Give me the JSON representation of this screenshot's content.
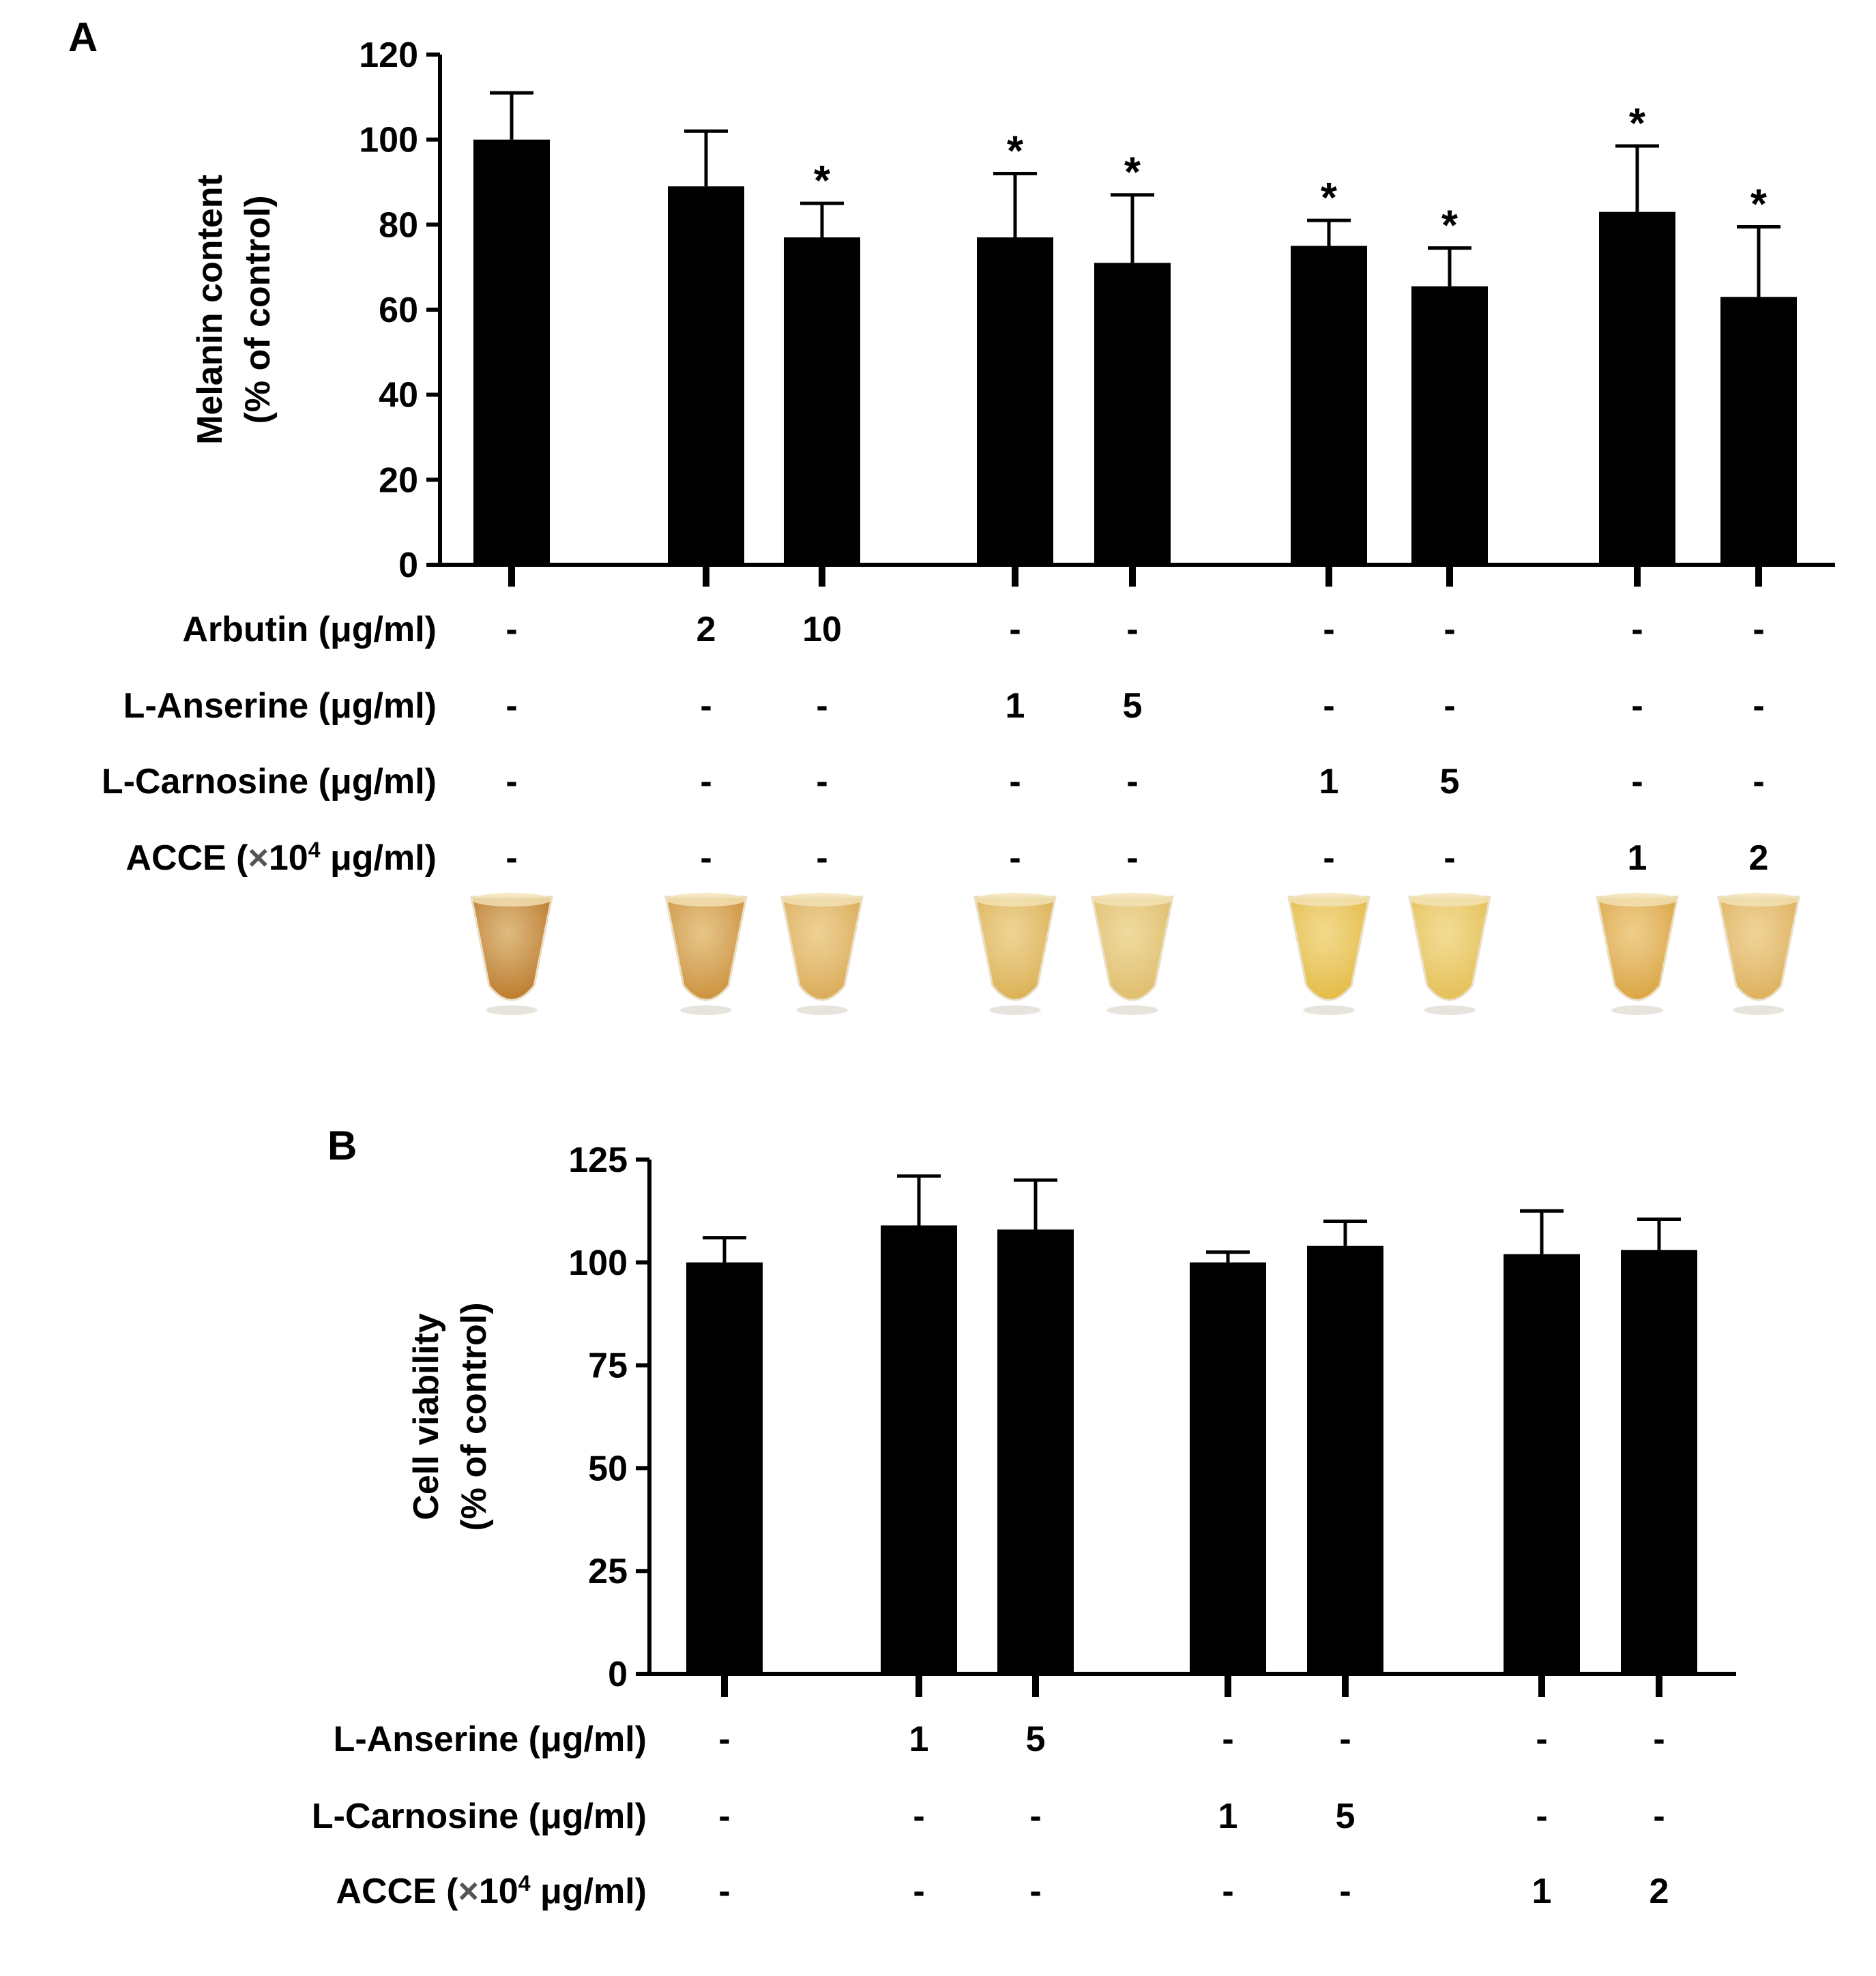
{
  "chart_data": [
    {
      "type": "bar",
      "panel_label": "A",
      "ylabel_lines": [
        "Melanin content",
        "(% of control)"
      ],
      "xlabel": "",
      "ylim": [
        0,
        120
      ],
      "yticks": [
        0,
        20,
        40,
        60,
        80,
        100,
        120
      ],
      "groups": [
        [
          0
        ],
        [
          1,
          2
        ],
        [
          3,
          4
        ],
        [
          5,
          6
        ],
        [
          7,
          8
        ]
      ],
      "series": [
        {
          "name": "Melanin content",
          "values": [
            100,
            89,
            77,
            77,
            71,
            75,
            65.5,
            83,
            63
          ],
          "errors": [
            11,
            13,
            8,
            15,
            16,
            6,
            9,
            15.5,
            16.5
          ],
          "significance": [
            "",
            "",
            "*",
            "*",
            "*",
            "*",
            "*",
            "*",
            "*"
          ]
        }
      ],
      "treatment_rows": [
        {
          "label": "Arbutin (μg/ml)",
          "values": [
            "-",
            "2",
            "10",
            "-",
            "-",
            "-",
            "-",
            "-",
            "-"
          ]
        },
        {
          "label": "L-Anserine (μg/ml)",
          "values": [
            "-",
            "-",
            "-",
            "1",
            "5",
            "-",
            "-",
            "-",
            "-"
          ]
        },
        {
          "label": "L-Carnosine (μg/ml)",
          "values": [
            "-",
            "-",
            "-",
            "-",
            "-",
            "1",
            "5",
            "-",
            "-"
          ]
        },
        {
          "label_prefix": "ACCE (",
          "label_times": "×",
          "label_base": "10",
          "label_exp": "4",
          "label_suffix": " μg/ml)",
          "values": [
            "-",
            "-",
            "-",
            "-",
            "-",
            "-",
            "-",
            "1",
            "2"
          ]
        }
      ],
      "tube_colors": [
        "#b8721c",
        "#c98a2e",
        "#d9a54a",
        "#d9ab48",
        "#ddb85f",
        "#e2b637",
        "#e3bb49",
        "#d99e35",
        "#dcaa50"
      ]
    },
    {
      "type": "bar",
      "panel_label": "B",
      "ylabel_lines": [
        "Cell viability",
        "(% of control)"
      ],
      "xlabel": "",
      "ylim": [
        0,
        125
      ],
      "yticks": [
        0,
        25,
        50,
        75,
        100,
        125
      ],
      "groups": [
        [
          0
        ],
        [
          1,
          2
        ],
        [
          3,
          4
        ],
        [
          5,
          6
        ]
      ],
      "series": [
        {
          "name": "Cell viability",
          "values": [
            100,
            109,
            108,
            100,
            104,
            102,
            103
          ],
          "errors": [
            6,
            12,
            12,
            2.5,
            6,
            10.5,
            7.5
          ],
          "significance": [
            "",
            "",
            "",
            "",
            "",
            "",
            ""
          ]
        }
      ],
      "treatment_rows": [
        {
          "label": "L-Anserine (μg/ml)",
          "values": [
            "-",
            "1",
            "5",
            "-",
            "-",
            "-",
            "-"
          ]
        },
        {
          "label": "L-Carnosine (μg/ml)",
          "values": [
            "-",
            "-",
            "-",
            "1",
            "5",
            "-",
            "-"
          ]
        },
        {
          "label_prefix": "ACCE (",
          "label_times": "×",
          "label_base": "10",
          "label_exp": "4",
          "label_suffix": " μg/ml)",
          "values": [
            "-",
            "-",
            "-",
            "-",
            "-",
            "1",
            "2"
          ]
        }
      ]
    }
  ],
  "colors": {
    "bar": "#000000",
    "axis": "#000000",
    "times_sign": "#555555"
  }
}
